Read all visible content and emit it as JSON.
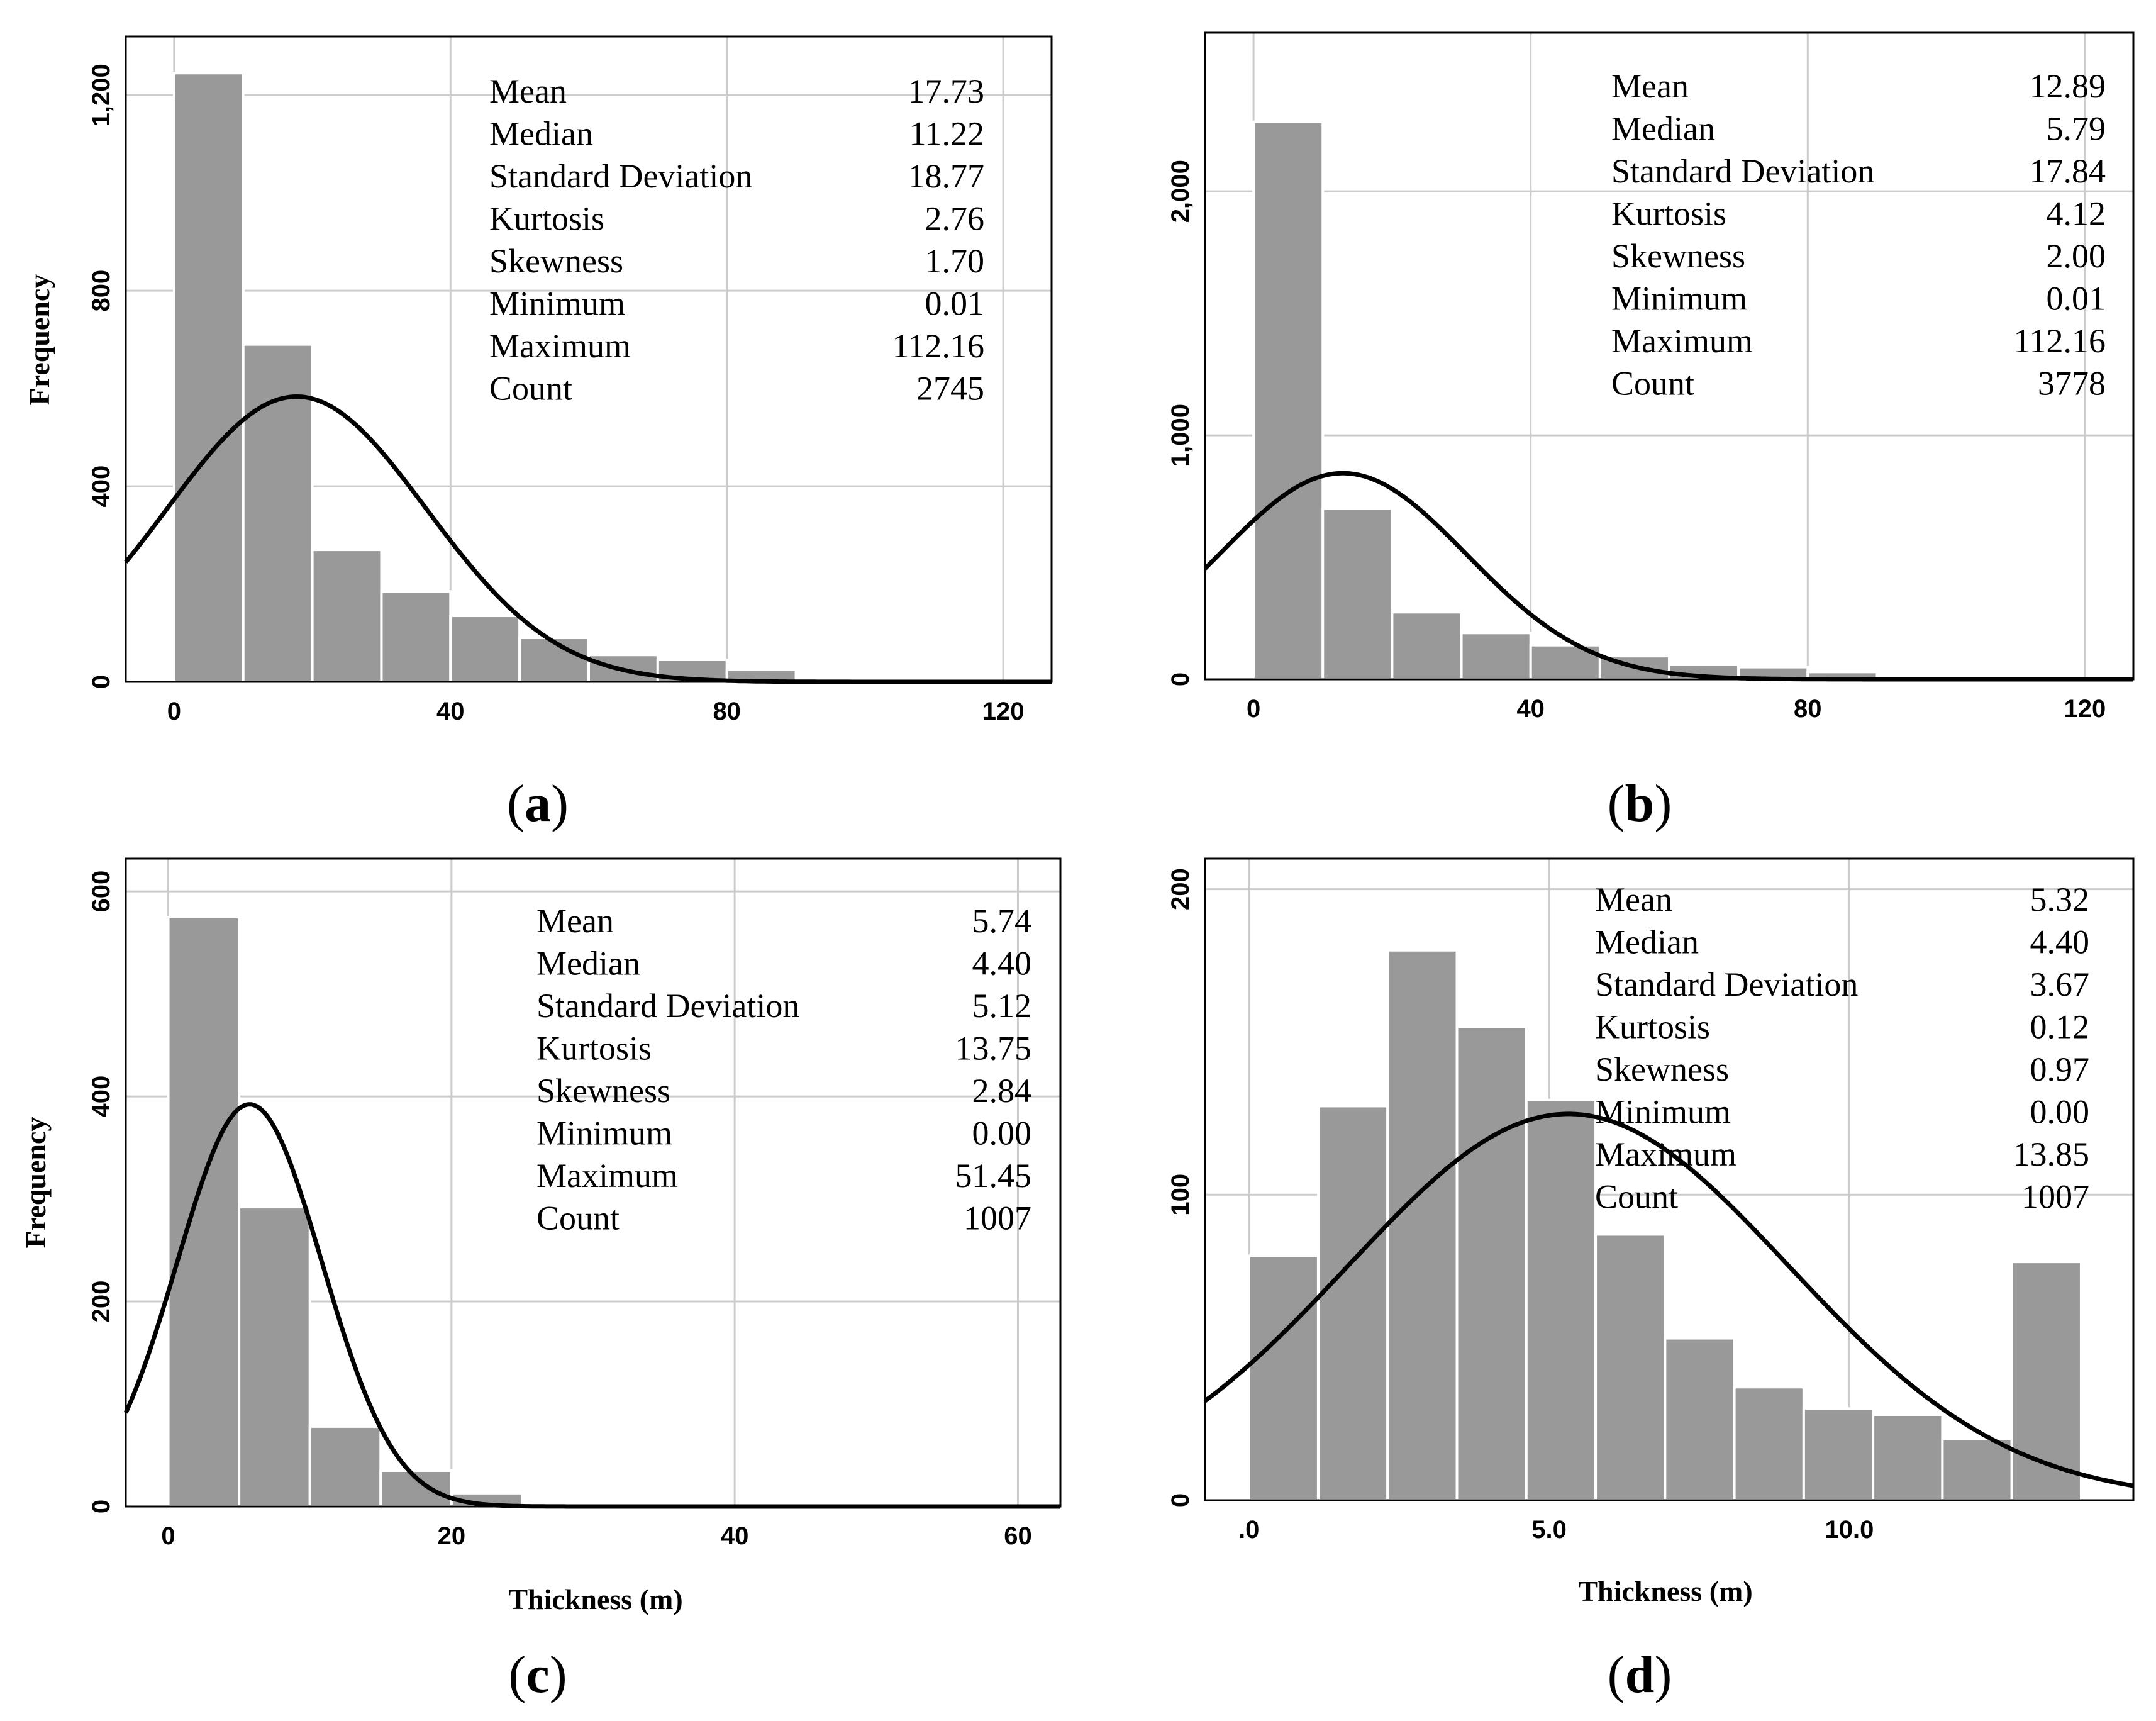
{
  "colors": {
    "bar": "#999999",
    "bar_edge": "#ffffff",
    "grid": "#cccccc",
    "frame": "#000000",
    "curve": "#000000"
  },
  "chart_data": [
    {
      "id": "a",
      "type": "bar",
      "panel_label": {
        "open": "(",
        "letter": "a",
        "close": ")"
      },
      "xlabel": "",
      "ylabel": "Frequency",
      "bins": [
        [
          0,
          10
        ],
        [
          10,
          20
        ],
        [
          20,
          30
        ],
        [
          30,
          40
        ],
        [
          40,
          50
        ],
        [
          50,
          60
        ],
        [
          60,
          70
        ],
        [
          70,
          80
        ],
        [
          80,
          90
        ],
        [
          90,
          100
        ],
        [
          100,
          110
        ],
        [
          110,
          120
        ]
      ],
      "values": [
        1245,
        690,
        270,
        185,
        135,
        90,
        55,
        45,
        25,
        0,
        0,
        0
      ],
      "xlim": [
        -7,
        127
      ],
      "ylim": [
        0,
        1320
      ],
      "xticks": [
        0,
        40,
        80,
        120
      ],
      "xtick_labels": [
        "0",
        "40",
        "80",
        "120"
      ],
      "yticks": [
        0,
        400,
        800,
        1200
      ],
      "ytick_labels": [
        "0",
        "400",
        "800",
        "1,200"
      ],
      "normal_curve": {
        "mean": 17.73,
        "sd": 18.77,
        "count": 2745,
        "bin_width": 10
      },
      "stats": [
        {
          "label": "Mean",
          "value": "17.73"
        },
        {
          "label": "Median",
          "value": "11.22"
        },
        {
          "label": "Standard Deviation",
          "value": "18.77"
        },
        {
          "label": "Kurtosis",
          "value": "2.76"
        },
        {
          "label": "Skewness",
          "value": "1.70"
        },
        {
          "label": "Minimum",
          "value": "0.01"
        },
        {
          "label": "Maximum",
          "value": "112.16"
        },
        {
          "label": "Count",
          "value": "2745"
        }
      ]
    },
    {
      "id": "b",
      "type": "bar",
      "panel_label": {
        "open": "(",
        "letter": "b",
        "close": ")"
      },
      "xlabel": "",
      "ylabel": "",
      "bins": [
        [
          0,
          10
        ],
        [
          10,
          20
        ],
        [
          20,
          30
        ],
        [
          30,
          40
        ],
        [
          40,
          50
        ],
        [
          50,
          60
        ],
        [
          60,
          70
        ],
        [
          70,
          80
        ],
        [
          80,
          90
        ],
        [
          90,
          100
        ],
        [
          100,
          110
        ],
        [
          110,
          120
        ]
      ],
      "values": [
        2285,
        700,
        275,
        190,
        140,
        95,
        60,
        50,
        30,
        0,
        0,
        0
      ],
      "xlim": [
        -7,
        127
      ],
      "ylim": [
        0,
        2650
      ],
      "xticks": [
        0,
        40,
        80,
        120
      ],
      "xtick_labels": [
        "0",
        "40",
        "80",
        "120"
      ],
      "yticks": [
        0,
        1000,
        2000
      ],
      "ytick_labels": [
        "0",
        "1,000",
        "2,000"
      ],
      "normal_curve": {
        "mean": 12.89,
        "sd": 17.84,
        "count": 3778,
        "bin_width": 10
      },
      "stats": [
        {
          "label": "Mean",
          "value": "12.89"
        },
        {
          "label": "Median",
          "value": "5.79"
        },
        {
          "label": "Standard Deviation",
          "value": "17.84"
        },
        {
          "label": "Kurtosis",
          "value": "4.12"
        },
        {
          "label": "Skewness",
          "value": "2.00"
        },
        {
          "label": "Minimum",
          "value": "0.01"
        },
        {
          "label": "Maximum",
          "value": "112.16"
        },
        {
          "label": "Count",
          "value": "3778"
        }
      ]
    },
    {
      "id": "c",
      "type": "bar",
      "panel_label": {
        "open": "(",
        "letter": "c",
        "close": ")"
      },
      "xlabel": "Thickness (m)",
      "ylabel": "Frequency",
      "bins": [
        [
          0,
          5
        ],
        [
          5,
          10
        ],
        [
          10,
          15
        ],
        [
          15,
          20
        ],
        [
          20,
          25
        ],
        [
          25,
          30
        ],
        [
          30,
          35
        ],
        [
          35,
          40
        ],
        [
          40,
          45
        ],
        [
          45,
          50
        ],
        [
          50,
          55
        ]
      ],
      "values": [
        575,
        292,
        78,
        35,
        13,
        2,
        1,
        0,
        0,
        0,
        1
      ],
      "xlim": [
        -3,
        63
      ],
      "ylim": [
        0,
        632
      ],
      "xticks": [
        0,
        20,
        40,
        60
      ],
      "xtick_labels": [
        "0",
        "20",
        "40",
        "60"
      ],
      "yticks": [
        0,
        200,
        400,
        600
      ],
      "ytick_labels": [
        "0",
        "200",
        "400",
        "600"
      ],
      "normal_curve": {
        "mean": 5.74,
        "sd": 5.12,
        "count": 1007,
        "bin_width": 5
      },
      "stats": [
        {
          "label": "Mean",
          "value": "5.74"
        },
        {
          "label": "Median",
          "value": "4.40"
        },
        {
          "label": "Standard Deviation",
          "value": "5.12"
        },
        {
          "label": "Kurtosis",
          "value": "13.75"
        },
        {
          "label": "Skewness",
          "value": "2.84"
        },
        {
          "label": "Minimum",
          "value": "0.00"
        },
        {
          "label": "Maximum",
          "value": "51.45"
        },
        {
          "label": "Count",
          "value": "1007"
        }
      ]
    },
    {
      "id": "d",
      "type": "bar",
      "panel_label": {
        "open": "(",
        "letter": "d",
        "close": ")"
      },
      "xlabel": "Thickness (m)",
      "ylabel": "",
      "bins": [
        [
          0,
          1.155
        ],
        [
          1.155,
          2.31
        ],
        [
          2.31,
          3.465
        ],
        [
          3.465,
          4.62
        ],
        [
          4.62,
          5.775
        ],
        [
          5.775,
          6.93
        ],
        [
          6.93,
          8.085
        ],
        [
          8.085,
          9.24
        ],
        [
          9.24,
          10.395
        ],
        [
          10.395,
          11.55
        ],
        [
          11.55,
          12.705
        ],
        [
          12.705,
          13.86
        ]
      ],
      "values": [
        80,
        129,
        180,
        155,
        131,
        87,
        53,
        37,
        30,
        28,
        20,
        78
      ],
      "xlim": [
        -0.73,
        14.73
      ],
      "ylim": [
        0,
        210
      ],
      "xticks": [
        0,
        5,
        10
      ],
      "xtick_labels": [
        ".0",
        "5.0",
        "10.0"
      ],
      "yticks": [
        0,
        100,
        200
      ],
      "ytick_labels": [
        "0",
        "100",
        "200"
      ],
      "normal_curve": {
        "mean": 5.32,
        "sd": 3.67,
        "count": 1007,
        "bin_width": 1.155
      },
      "stats": [
        {
          "label": "Mean",
          "value": "5.32"
        },
        {
          "label": "Median",
          "value": "4.40"
        },
        {
          "label": "Standard Deviation",
          "value": "3.67"
        },
        {
          "label": "Kurtosis",
          "value": "0.12"
        },
        {
          "label": "Skewness",
          "value": "0.97"
        },
        {
          "label": "Minimum",
          "value": "0.00"
        },
        {
          "label": "Maximum",
          "value": "13.85"
        },
        {
          "label": "Count",
          "value": "1007"
        }
      ]
    }
  ]
}
